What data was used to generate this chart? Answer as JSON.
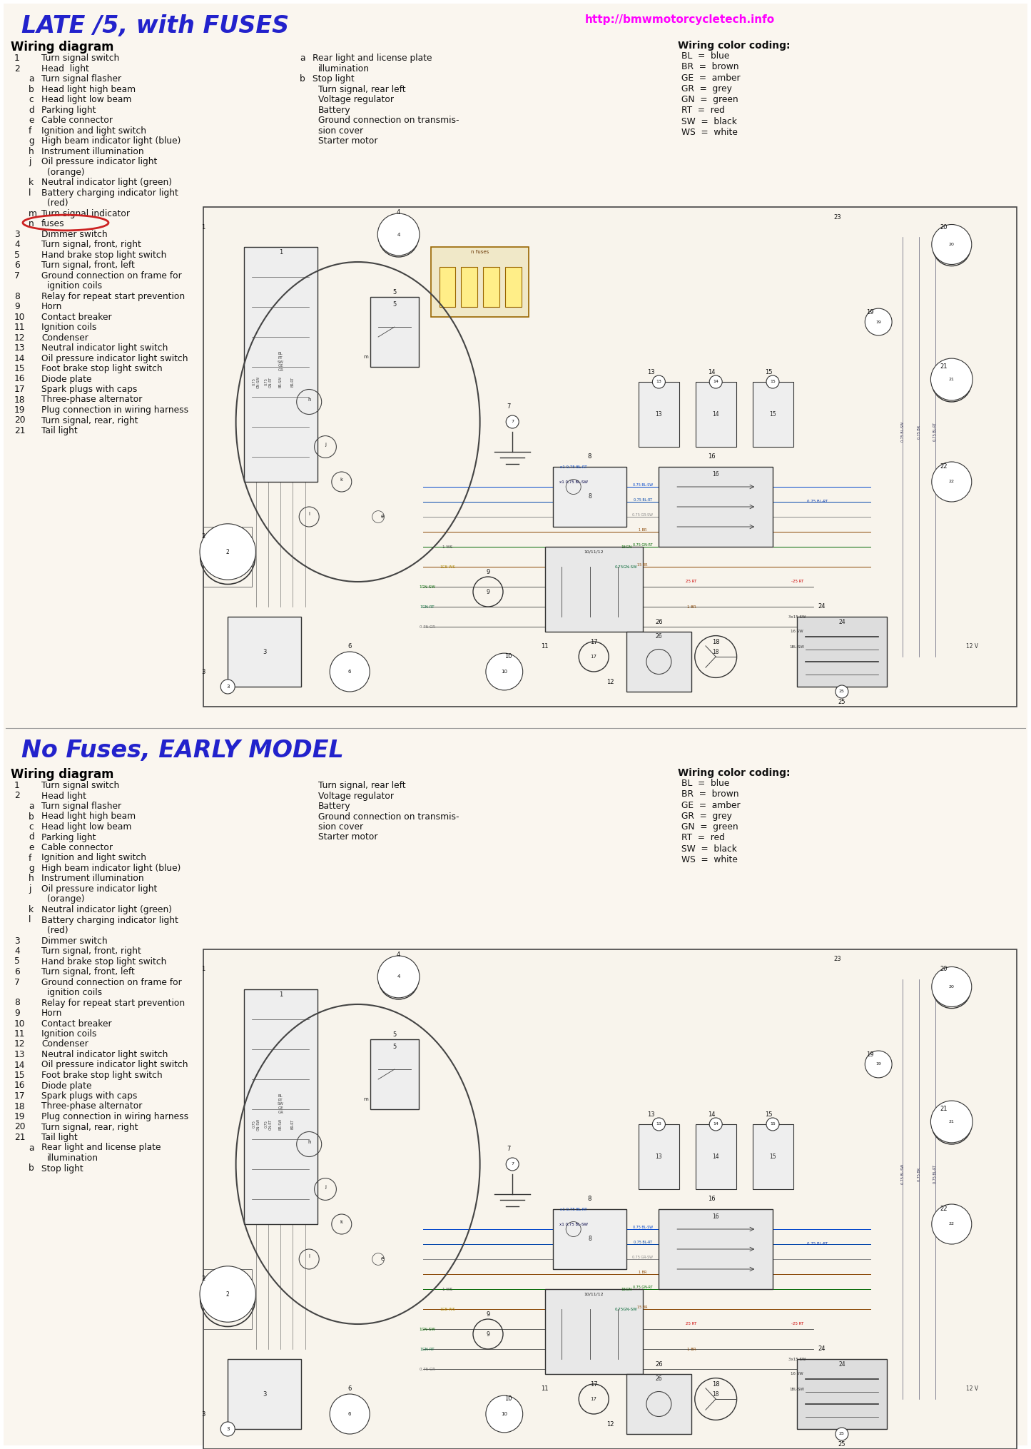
{
  "bg_color": "#ffffff",
  "scan_color": "#f2ede4",
  "title1_text": "LATE /5, with FUSES",
  "title1_color": "#2222cc",
  "url_text": "http://bmwmotorcycletech.info",
  "url_color": "#ff00ff",
  "title2_text": "No Fuses, EARLY MODEL",
  "title2_color": "#2222cc",
  "wiring_diagram_label": "Wiring diagram",
  "wiring_color_label": "Wiring color coding:",
  "color_codes_top": [
    [
      "BL",
      "blue"
    ],
    [
      "BR",
      "brown"
    ],
    [
      "GE",
      "amber"
    ],
    [
      "GR",
      "grey"
    ],
    [
      "GN",
      "green"
    ],
    [
      "RT",
      "red"
    ],
    [
      "SW",
      "black"
    ],
    [
      "WS",
      "white"
    ]
  ],
  "color_codes_bottom": [
    [
      "BL",
      "blue"
    ],
    [
      "BR",
      "brown"
    ],
    [
      "GE",
      "amber"
    ],
    [
      "GR",
      "grey"
    ],
    [
      "GN",
      "green"
    ],
    [
      "RT",
      "red"
    ],
    [
      "SW",
      "black"
    ],
    [
      "WS",
      "white"
    ]
  ],
  "items_col1_top": [
    [
      "1",
      "Turn signal switch"
    ],
    [
      "2",
      "Head  light"
    ],
    [
      "a",
      "Turn signal flasher"
    ],
    [
      "b",
      "Head light high beam"
    ],
    [
      "c",
      "Head light low beam"
    ],
    [
      "d",
      "Parking light"
    ],
    [
      "e",
      "Cable connector"
    ],
    [
      "f",
      "Ignition and light switch"
    ],
    [
      "g",
      "High beam indicator light (blue)"
    ],
    [
      "h",
      "Instrument illumination"
    ],
    [
      "j",
      "Oil pressure indicator light"
    ],
    [
      "",
      "(orange)"
    ],
    [
      "k",
      "Neutral indicator light (green)"
    ],
    [
      "l",
      "Battery charging indicator light"
    ],
    [
      "",
      "(red)"
    ],
    [
      "m",
      "Turn signal indicator"
    ],
    [
      "n",
      "fuses"
    ],
    [
      "3",
      "Dimmer switch"
    ],
    [
      "4",
      "Turn signal, front, right"
    ],
    [
      "5",
      "Hand brake stop light switch"
    ],
    [
      "6",
      "Turn signal, front, left"
    ],
    [
      "7",
      "Ground connection on frame for"
    ],
    [
      "",
      "ignition coils"
    ],
    [
      "8",
      "Relay for repeat start prevention"
    ],
    [
      "9",
      "Horn"
    ],
    [
      "10",
      "Contact breaker"
    ],
    [
      "11",
      "Ignition coils"
    ],
    [
      "12",
      "Condenser"
    ],
    [
      "13",
      "Neutral indicator light switch"
    ],
    [
      "14",
      "Oil pressure indicator light switch"
    ],
    [
      "15",
      "Foot brake stop light switch"
    ],
    [
      "16",
      "Diode plate"
    ],
    [
      "17",
      "Spark plugs with caps"
    ],
    [
      "18",
      "Three-phase alternator"
    ],
    [
      "19",
      "Plug connection in wiring harness"
    ],
    [
      "20",
      "Turn signal, rear, right"
    ],
    [
      "21",
      "Tail light"
    ]
  ],
  "items_col2_top": [
    [
      "a",
      "Rear light and license plate"
    ],
    [
      "",
      "illumination"
    ],
    [
      "b",
      "Stop light"
    ],
    [
      "22",
      "Turn signal, rear left"
    ],
    [
      "23",
      "Voltage regulator"
    ],
    [
      "24",
      "Battery"
    ],
    [
      "25",
      "Ground connection on transmis-"
    ],
    [
      "",
      "sion cover"
    ],
    [
      "26",
      "Starter motor"
    ]
  ],
  "items_col1_bot": [
    [
      "1",
      "Turn signal switch"
    ],
    [
      "2",
      "Head light"
    ],
    [
      "a",
      "Turn signal flasher"
    ],
    [
      "b",
      "Head light high beam"
    ],
    [
      "c",
      "Head light low beam"
    ],
    [
      "d",
      "Parking light"
    ],
    [
      "e",
      "Cable connector"
    ],
    [
      "f",
      "Ignition and light switch"
    ],
    [
      "g",
      "High beam indicator light (blue)"
    ],
    [
      "h",
      "Instrument illumination"
    ],
    [
      "j",
      "Oil pressure indicator light"
    ],
    [
      "",
      "(orange)"
    ],
    [
      "k",
      "Neutral indicator light (green)"
    ],
    [
      "l",
      "Battery charging indicator light"
    ],
    [
      "",
      "(red)"
    ],
    [
      "3",
      "Dimmer switch"
    ],
    [
      "4",
      "Turn signal, front, right"
    ],
    [
      "5",
      "Hand brake stop light switch"
    ],
    [
      "6",
      "Turn signal, front, left"
    ],
    [
      "7",
      "Ground connection on frame for"
    ],
    [
      "",
      "ignition coils"
    ],
    [
      "8",
      "Relay for repeat start prevention"
    ],
    [
      "9",
      "Horn"
    ],
    [
      "10",
      "Contact breaker"
    ],
    [
      "11",
      "Ignition coils"
    ],
    [
      "12",
      "Condenser"
    ],
    [
      "13",
      "Neutral indicator light switch"
    ],
    [
      "14",
      "Oil pressure indicator light switch"
    ],
    [
      "15",
      "Foot brake stop light switch"
    ],
    [
      "16",
      "Diode plate"
    ],
    [
      "17",
      "Spark plugs with caps"
    ],
    [
      "18",
      "Three-phase alternator"
    ],
    [
      "19",
      "Plug connection in wiring harness"
    ],
    [
      "20",
      "Turn signal, rear, right"
    ],
    [
      "21",
      "Tail light"
    ],
    [
      "a",
      "Rear light and license plate"
    ],
    [
      "",
      "illumination"
    ],
    [
      "b",
      "Stop light"
    ]
  ],
  "items_col2_bot": [
    [
      "22",
      "Turn signal, rear left"
    ],
    [
      "23",
      "Voltage regulator"
    ],
    [
      "24",
      "Battery"
    ],
    [
      "25",
      "Ground connection on transmis-"
    ],
    [
      "",
      "sion cover"
    ],
    [
      "26",
      "Starter motor"
    ]
  ]
}
